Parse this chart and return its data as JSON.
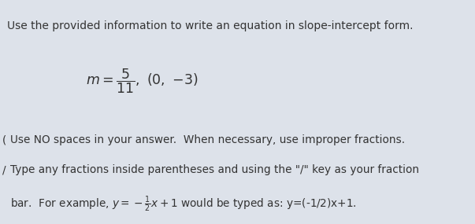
{
  "title": "Use the provided information to write an equation in slope-intercept form.",
  "bg_color": "#dde2ea",
  "text_color": "#333333",
  "title_fontsize": 10.0,
  "math_fontsize": 12.5,
  "instr_fontsize": 9.8
}
